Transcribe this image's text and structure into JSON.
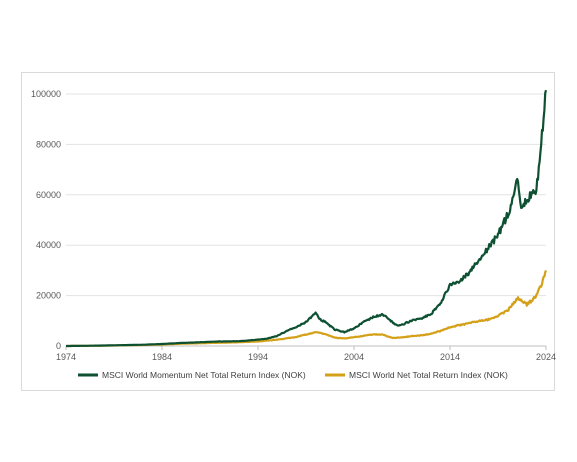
{
  "chart_data": {
    "type": "line",
    "title": "",
    "xlabel": "",
    "ylabel": "",
    "xlim": [
      1974,
      2024
    ],
    "ylim": [
      0,
      100000
    ],
    "x_ticks": [
      "1974",
      "1984",
      "1994",
      "2004",
      "2014",
      "2024"
    ],
    "y_ticks": [
      "0",
      "20000",
      "40000",
      "60000",
      "80000",
      "100000"
    ],
    "grid": "horizontal",
    "legend_position": "bottom",
    "series": [
      {
        "name": "MSCI World Momentum Net Total Return Index (NOK)",
        "color": "#0d5132",
        "x": [
          1974,
          1976,
          1978,
          1980,
          1982,
          1984,
          1986,
          1988,
          1990,
          1992,
          1994,
          1995,
          1996,
          1997,
          1998,
          1999,
          2000,
          2000.5,
          2001,
          2002,
          2003,
          2004,
          2005,
          2006,
          2007,
          2008,
          2008.5,
          2009,
          2010,
          2011,
          2012,
          2013,
          2014,
          2015,
          2016,
          2017,
          2018,
          2019,
          2020,
          2020.5,
          2021,
          2021.5,
          2022,
          2022.5,
          2023,
          2023.5,
          2024
        ],
        "y": [
          0,
          80,
          200,
          350,
          500,
          800,
          1200,
          1500,
          1800,
          1900,
          2500,
          3000,
          4000,
          6000,
          7500,
          9500,
          13000,
          10500,
          9500,
          6500,
          5500,
          7000,
          9500,
          11500,
          12500,
          9500,
          8000,
          8500,
          10000,
          11000,
          12500,
          17000,
          24000,
          26000,
          29000,
          34000,
          39000,
          44000,
          52000,
          58000,
          66000,
          54000,
          58000,
          61000,
          62000,
          80000,
          101500
        ]
      },
      {
        "name": "MSCI World Net Total Return Index (NOK)",
        "color": "#d4a017",
        "x": [
          1974,
          1976,
          1978,
          1980,
          1982,
          1984,
          1986,
          1988,
          1990,
          1992,
          1994,
          1996,
          1998,
          2000,
          2001,
          2002,
          2003,
          2004,
          2005,
          2006,
          2007,
          2008,
          2009,
          2010,
          2011,
          2012,
          2013,
          2014,
          2015,
          2016,
          2017,
          2018,
          2019,
          2020,
          2021,
          2022,
          2022.5,
          2023,
          2023.5,
          2024
        ],
        "y": [
          0,
          60,
          150,
          250,
          400,
          600,
          900,
          1100,
          1300,
          1500,
          1800,
          2500,
          3600,
          5500,
          4700,
          3300,
          3000,
          3500,
          4000,
          4600,
          4500,
          3200,
          3400,
          3900,
          4200,
          4800,
          6000,
          7500,
          8300,
          9000,
          10000,
          10500,
          12000,
          14000,
          19000,
          16500,
          18000,
          20000,
          24000,
          30000
        ]
      }
    ]
  }
}
